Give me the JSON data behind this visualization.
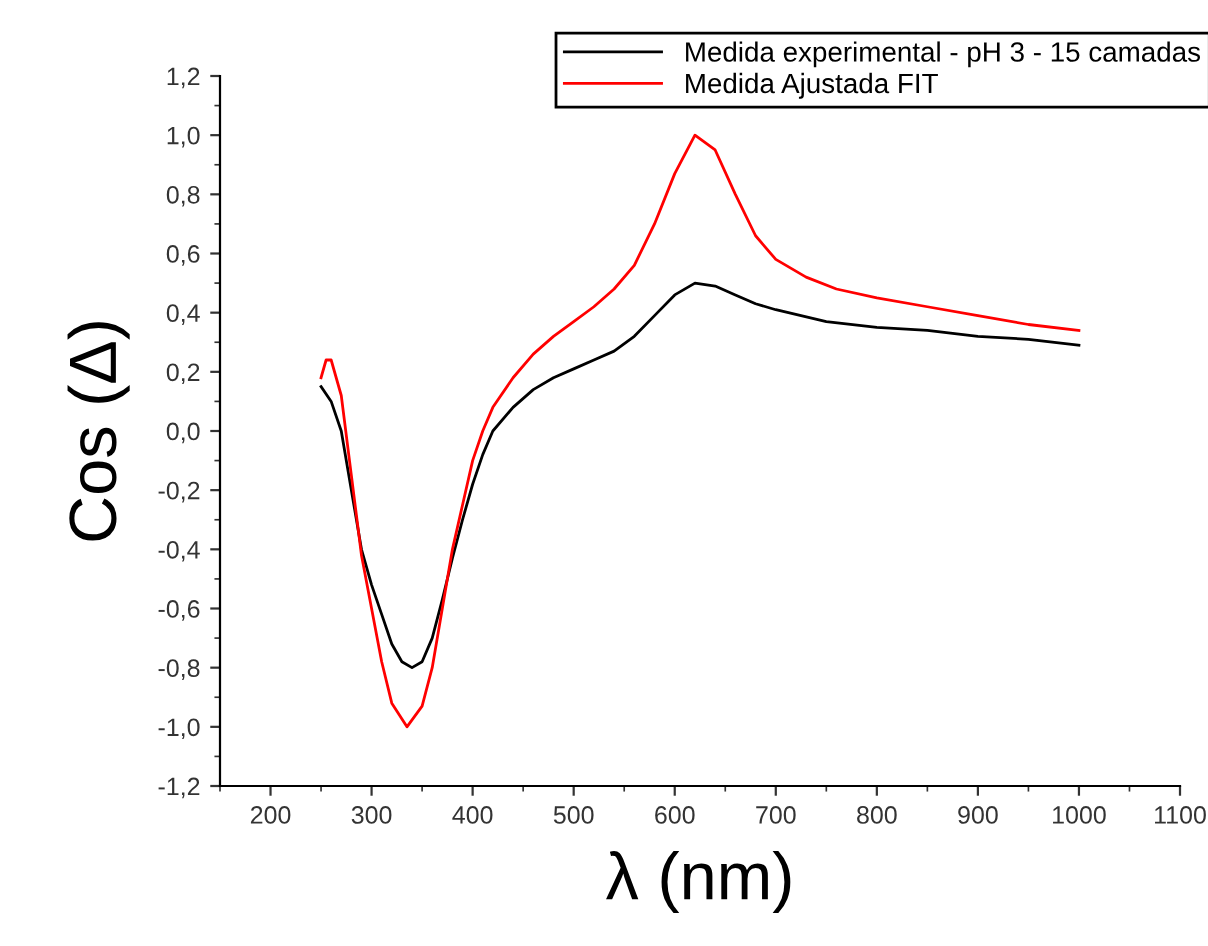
{
  "chart_data": {
    "type": "line",
    "xlabel": "λ (nm)",
    "ylabel": "Cos (Δ)",
    "legend": "top right",
    "grid": false,
    "line_style": "solid",
    "marker": "none",
    "xlim": [
      150,
      1100
    ],
    "ylim": [
      -1.2,
      1.2
    ],
    "xticks": [
      200,
      300,
      400,
      500,
      600,
      700,
      800,
      900,
      1000,
      1100
    ],
    "yticks": [
      {
        "value": -1.2,
        "label": "-1,2"
      },
      {
        "value": -1.0,
        "label": "-1,0"
      },
      {
        "value": -0.8,
        "label": "-0,8"
      },
      {
        "value": -0.6,
        "label": "-0,6"
      },
      {
        "value": -0.4,
        "label": "-0,4"
      },
      {
        "value": -0.2,
        "label": "-0,2"
      },
      {
        "value": 0.0,
        "label": "0,0"
      },
      {
        "value": 0.2,
        "label": "0,2"
      },
      {
        "value": 0.4,
        "label": "0,4"
      },
      {
        "value": 0.6,
        "label": "0,6"
      },
      {
        "value": 0.8,
        "label": "0,8"
      },
      {
        "value": 1.0,
        "label": "1,0"
      },
      {
        "value": 1.2,
        "label": "1,2"
      }
    ],
    "series": [
      {
        "name": "Medida experimental - pH 3 - 15 camadas",
        "color": "#000000",
        "x": [
          250,
          260,
          270,
          280,
          290,
          300,
          310,
          320,
          330,
          340,
          350,
          360,
          370,
          380,
          390,
          400,
          410,
          420,
          440,
          460,
          480,
          500,
          520,
          540,
          560,
          580,
          600,
          620,
          640,
          660,
          680,
          700,
          750,
          800,
          850,
          900,
          950,
          1000
        ],
        "values": [
          0.15,
          0.1,
          0.0,
          -0.2,
          -0.4,
          -0.52,
          -0.62,
          -0.72,
          -0.78,
          -0.8,
          -0.78,
          -0.7,
          -0.57,
          -0.43,
          -0.3,
          -0.18,
          -0.08,
          0.0,
          0.08,
          0.14,
          0.18,
          0.21,
          0.24,
          0.27,
          0.32,
          0.39,
          0.46,
          0.5,
          0.49,
          0.46,
          0.43,
          0.41,
          0.37,
          0.35,
          0.34,
          0.32,
          0.31,
          0.29
        ]
      },
      {
        "name": "Medida Ajustada FIT",
        "color": "#ff0000",
        "x": [
          250,
          255,
          260,
          270,
          280,
          290,
          300,
          310,
          320,
          335,
          350,
          360,
          370,
          380,
          390,
          400,
          410,
          420,
          440,
          460,
          480,
          500,
          520,
          540,
          560,
          580,
          600,
          620,
          640,
          660,
          680,
          700,
          730,
          760,
          800,
          850,
          900,
          950,
          1000
        ],
        "values": [
          0.18,
          0.24,
          0.24,
          0.12,
          -0.15,
          -0.42,
          -0.6,
          -0.78,
          -0.92,
          -1.0,
          -0.93,
          -0.8,
          -0.6,
          -0.4,
          -0.25,
          -0.1,
          0.0,
          0.08,
          0.18,
          0.26,
          0.32,
          0.37,
          0.42,
          0.48,
          0.56,
          0.7,
          0.87,
          1.0,
          0.95,
          0.8,
          0.66,
          0.58,
          0.52,
          0.48,
          0.45,
          0.42,
          0.39,
          0.36,
          0.34
        ]
      }
    ]
  }
}
